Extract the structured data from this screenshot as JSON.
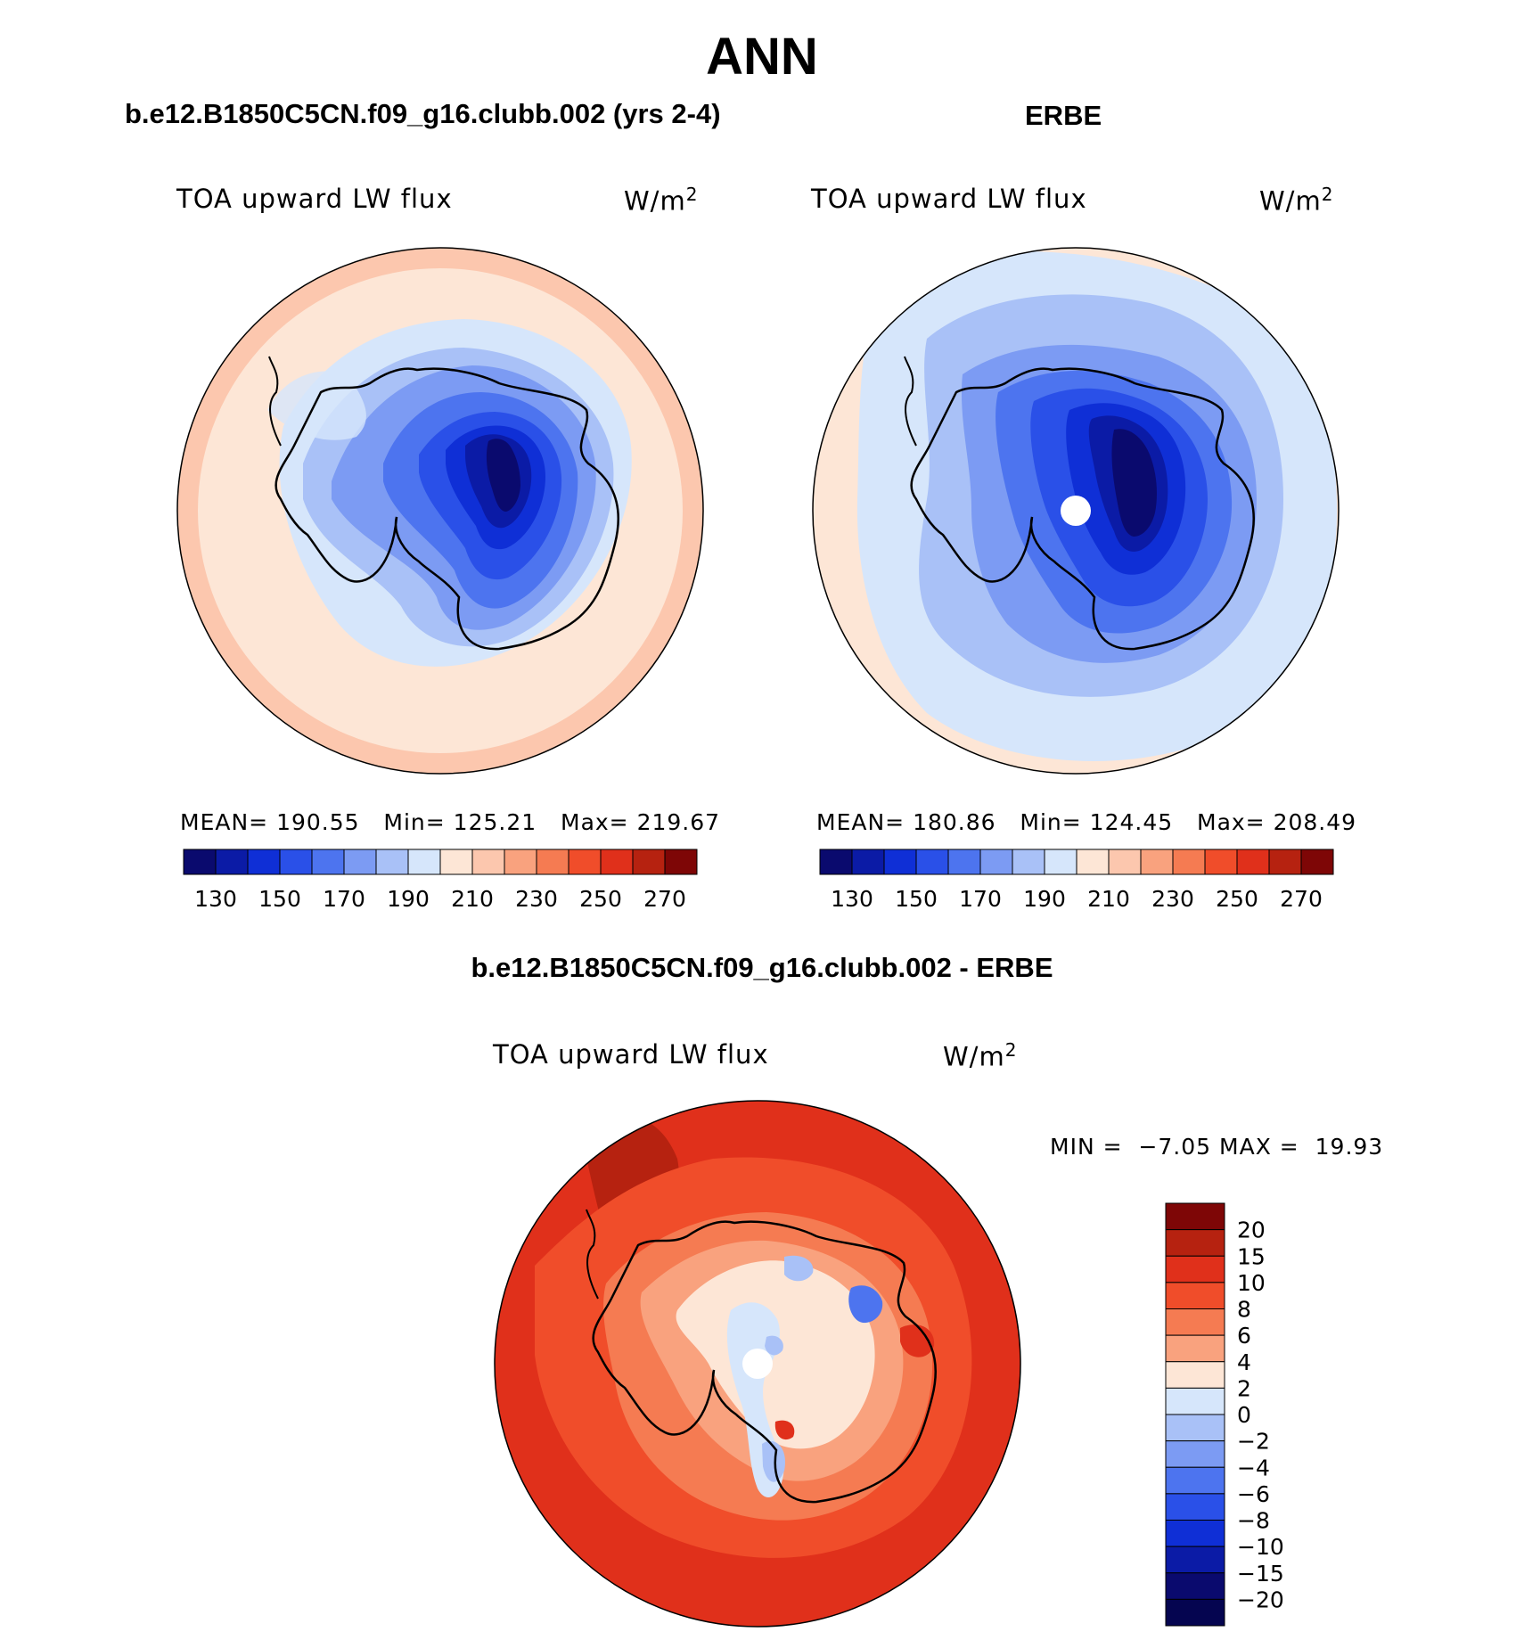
{
  "page": {
    "title": "ANN"
  },
  "panels": [
    {
      "title": "b.e12.B1850C5CN.f09_g16.clubb.002 (yrs 2-4)",
      "variable": "TOA upward LW flux",
      "units_base": "W/m",
      "units_sup": "2",
      "mean_label": "MEAN=",
      "mean": "190.55",
      "min_label": "Min=",
      "min": "125.21",
      "max_label": "Max=",
      "max": "219.67"
    },
    {
      "title": "ERBE",
      "variable": "TOA upward LW flux",
      "units_base": "W/m",
      "units_sup": "2",
      "mean_label": "MEAN=",
      "mean": "180.86",
      "min_label": "Min=",
      "min": "124.45",
      "max_label": "Max=",
      "max": "208.49"
    },
    {
      "title": "b.e12.B1850C5CN.f09_g16.clubb.002 - ERBE",
      "variable": "TOA upward LW flux",
      "units_base": "W/m",
      "units_sup": "2",
      "min_label": "MIN =",
      "min": "−7.05",
      "max_label": "MAX =",
      "max": "19.93"
    }
  ],
  "chart_data": [
    {
      "type": "heatmap",
      "projection": "south-polar-stereographic",
      "title": "b.e12.B1850C5CN.f09_g16.clubb.002 (yrs 2-4)",
      "variable": "TOA upward LW flux",
      "units": "W/m2",
      "stats": {
        "mean": 190.55,
        "min": 125.21,
        "max": 219.67
      },
      "colorbar_ticks": [
        "130",
        "150",
        "170",
        "190",
        "210",
        "230",
        "250",
        "270"
      ],
      "colorbar_colors": [
        "#0a0a6e",
        "#0b1ba6",
        "#0f2fd6",
        "#2a50e8",
        "#4d74ef",
        "#7c9bf3",
        "#a9c1f7",
        "#d6e6fb",
        "#fde6d6",
        "#fcc7ae",
        "#f9a27e",
        "#f57b52",
        "#f04d2a",
        "#e0301b",
        "#b62210",
        "#7e0606"
      ]
    },
    {
      "type": "heatmap",
      "projection": "south-polar-stereographic",
      "title": "ERBE",
      "variable": "TOA upward LW flux",
      "units": "W/m2",
      "stats": {
        "mean": 180.86,
        "min": 124.45,
        "max": 208.49
      },
      "colorbar_ticks": [
        "130",
        "150",
        "170",
        "190",
        "210",
        "230",
        "250",
        "270"
      ],
      "colorbar_colors": [
        "#0a0a6e",
        "#0b1ba6",
        "#0f2fd6",
        "#2a50e8",
        "#4d74ef",
        "#7c9bf3",
        "#a9c1f7",
        "#d6e6fb",
        "#fde6d6",
        "#fcc7ae",
        "#f9a27e",
        "#f57b52",
        "#f04d2a",
        "#e0301b",
        "#b62210",
        "#7e0606"
      ]
    },
    {
      "type": "heatmap",
      "projection": "south-polar-stereographic",
      "title": "b.e12.B1850C5CN.f09_g16.clubb.002 - ERBE",
      "variable": "TOA upward LW flux",
      "units": "W/m2",
      "stats": {
        "min": -7.05,
        "max": 19.93
      },
      "colorbar_ticks": [
        "20",
        "15",
        "10",
        "8",
        "6",
        "4",
        "2",
        "0",
        "−2",
        "−4",
        "−6",
        "−8",
        "−10",
        "−15",
        "−20"
      ],
      "colorbar_colors": [
        "#7e0606",
        "#b62210",
        "#e0301b",
        "#f04d2a",
        "#f57b52",
        "#f9a27e",
        "#fde6d6",
        "#d6e6fb",
        "#a9c1f7",
        "#7c9bf3",
        "#4d74ef",
        "#2a50e8",
        "#0f2fd6",
        "#0b1ba6",
        "#0a0a6e",
        "#050550"
      ]
    }
  ]
}
